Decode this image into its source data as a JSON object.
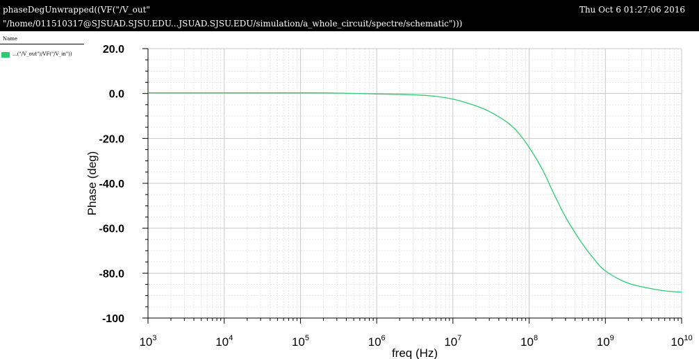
{
  "header": {
    "title_line1": "phaseDegUnwrapped((VF(\"/V_out\"",
    "title_line2": "\"/home/011510317@SJSUAD.SJSU.EDU...JSUAD.SJSU.EDU/simulation/a_whole_circuit/spectre/schematic\")))",
    "timestamp": "Thu Oct 6 01:27:06 2016"
  },
  "legend": {
    "header": "Name",
    "entries": [
      {
        "label": "...(\"/V_out\")/VF(\"/V_in\"))",
        "color": "#2ecc71"
      }
    ]
  },
  "chart_data": {
    "type": "line",
    "xlabel": "freq (Hz)",
    "ylabel": "Phase (deg)",
    "xscale": "log",
    "xlim": [
      1000,
      10000000000
    ],
    "ylim": [
      -100,
      20
    ],
    "x_tick_base": "10",
    "x_tick_exponents": [
      "3",
      "4",
      "5",
      "6",
      "7",
      "8",
      "9",
      "10"
    ],
    "y_ticks": [
      "20.0",
      "0.0",
      "-20.0",
      "-40.0",
      "-60.0",
      "-80.0",
      "-100"
    ],
    "grid": true,
    "series": [
      {
        "color": "#2ecc71",
        "x": [
          1000,
          10000,
          100000,
          300000,
          1000000,
          2000000,
          5000000,
          10000000,
          20000000,
          30000000,
          50000000,
          70000000,
          100000000,
          150000000,
          200000000,
          300000000,
          500000000,
          700000000,
          1000000000,
          2000000000,
          5000000000,
          10000000000
        ],
        "y": [
          0.3,
          0.3,
          0.3,
          0.2,
          -0.2,
          -0.4,
          -1.0,
          -2.5,
          -5.5,
          -8.0,
          -12.5,
          -17.0,
          -24.0,
          -34.0,
          -43.0,
          -55.0,
          -67.0,
          -73.5,
          -79.0,
          -84.5,
          -87.5,
          -88.5
        ]
      }
    ]
  }
}
